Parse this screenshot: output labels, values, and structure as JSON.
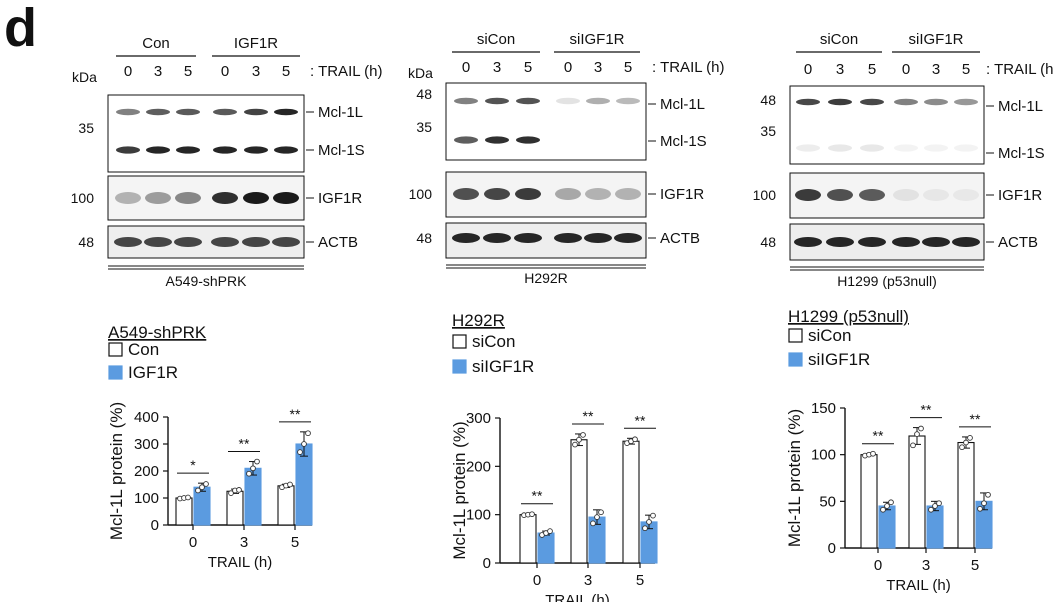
{
  "panel_label": "d",
  "colors": {
    "control": "#ffffff",
    "knockdown": "#5b9be0",
    "outline": "#1a1a1a",
    "band": "#1a1a1a"
  },
  "blots": [
    {
      "cell_line": "A549-shPRK",
      "group_labels": [
        "Con",
        "IGF1R"
      ],
      "time_points": [
        "0",
        "3",
        "5",
        "0",
        "3",
        "5"
      ],
      "trail_label": ": TRAIL (h)",
      "kda_label": "kDa",
      "markers": {
        "mcl": [
          "35"
        ],
        "igf": "100",
        "actb": "48"
      },
      "row_labels": {
        "mcl_l": "Mcl-1L",
        "mcl_s": "Mcl-1S",
        "igf": "IGF1R",
        "actb": "ACTB"
      }
    },
    {
      "cell_line": "H292R",
      "group_labels": [
        "siCon",
        "siIGF1R"
      ],
      "time_points": [
        "0",
        "3",
        "5",
        "0",
        "3",
        "5"
      ],
      "trail_label": ": TRAIL (h)",
      "kda_label": "kDa",
      "markers": {
        "mcl": [
          "48",
          "35"
        ],
        "igf": "100",
        "actb": "48"
      },
      "row_labels": {
        "mcl_l": "Mcl-1L",
        "mcl_s": "Mcl-1S",
        "igf": "IGF1R",
        "actb": "ACTB"
      }
    },
    {
      "cell_line": "H1299 (p53null)",
      "group_labels": [
        "siCon",
        "siIGF1R"
      ],
      "time_points": [
        "0",
        "3",
        "5",
        "0",
        "3",
        "5"
      ],
      "trail_label": ": TRAIL (h",
      "kda_label": "",
      "markers": {
        "mcl": [
          "48",
          "35"
        ],
        "igf": "100",
        "actb": "48"
      },
      "row_labels": {
        "mcl_l": "Mcl-1L",
        "mcl_s": "Mcl-1S",
        "igf": "IGF1R",
        "actb": "ACTB"
      }
    }
  ],
  "chart_data": [
    {
      "type": "bar",
      "title": "A549-shPRK",
      "categories": [
        "0",
        "3",
        "5"
      ],
      "xlabel": "TRAIL (h)",
      "ylabel": "Mcl-1L protein (%)",
      "ylim": [
        0,
        400
      ],
      "yticks": [
        "0",
        "100",
        "200",
        "300",
        "400"
      ],
      "series": [
        {
          "name": "Con",
          "values": [
            100,
            125,
            145
          ],
          "errors": [
            3,
            8,
            6
          ],
          "points": [
            [
              98,
              100,
              102
            ],
            [
              118,
              128,
              130
            ],
            [
              140,
              146,
              150
            ]
          ]
        },
        {
          "name": "IGF1R",
          "values": [
            140,
            210,
            300
          ],
          "errors": [
            15,
            25,
            45
          ],
          "points": [
            [
              128,
              140,
              152
            ],
            [
              190,
              210,
              235
            ],
            [
              270,
              300,
              340
            ]
          ]
        }
      ],
      "significance": [
        "*",
        "**",
        "**"
      ]
    },
    {
      "type": "bar",
      "title": "H292R",
      "categories": [
        "0",
        "3",
        "5"
      ],
      "xlabel": "TRAIL (h)",
      "ylabel": "Mcl-1L protein (%)",
      "ylim": [
        0,
        300
      ],
      "yticks": [
        "0",
        "100",
        "200",
        "300"
      ],
      "series": [
        {
          "name": "siCon",
          "values": [
            100,
            255,
            252
          ],
          "errors": [
            2,
            12,
            6
          ],
          "points": [
            [
              99,
              100,
              101
            ],
            [
              245,
              255,
              265
            ],
            [
              248,
              252,
              256
            ]
          ]
        },
        {
          "name": "siIGF1R",
          "values": [
            62,
            95,
            85
          ],
          "errors": [
            4,
            15,
            14
          ],
          "points": [
            [
              58,
              62,
              66
            ],
            [
              82,
              95,
              105
            ],
            [
              72,
              85,
              98
            ]
          ]
        }
      ],
      "significance": [
        "**",
        "**",
        "**"
      ]
    },
    {
      "type": "bar",
      "title": "H1299 (p53null)",
      "categories": [
        "0",
        "3",
        "5"
      ],
      "xlabel": "TRAIL (h)",
      "ylabel": "Mcl-1L protein (%)",
      "ylim": [
        0,
        150
      ],
      "yticks": [
        "0",
        "50",
        "100",
        "150"
      ],
      "series": [
        {
          "name": "siCon",
          "values": [
            100,
            120,
            113
          ],
          "errors": [
            1,
            9,
            6
          ],
          "points": [
            [
              99,
              100,
              101
            ],
            [
              110,
              122,
              128
            ],
            [
              108,
              113,
              118
            ]
          ]
        },
        {
          "name": "siIGF1R",
          "values": [
            45,
            45,
            50
          ],
          "errors": [
            4,
            5,
            9
          ],
          "points": [
            [
              41,
              45,
              49
            ],
            [
              41,
              45,
              48
            ],
            [
              42,
              48,
              57
            ]
          ]
        }
      ],
      "significance": [
        "**",
        "**",
        "**"
      ]
    }
  ]
}
